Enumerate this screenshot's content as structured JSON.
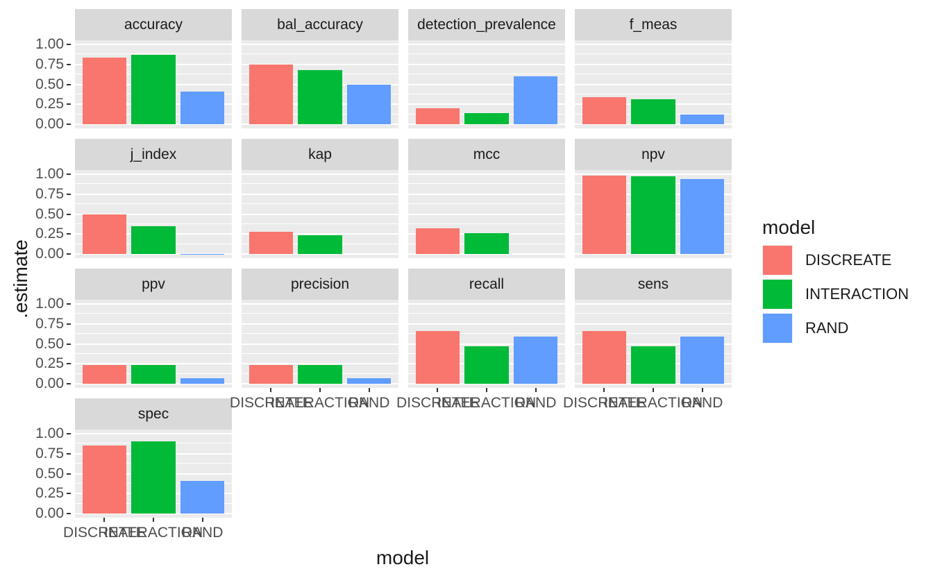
{
  "chart_data": {
    "type": "bar",
    "faceted": true,
    "facet_variable": "metric",
    "x_variable": "model",
    "title": "",
    "xlabel": "model",
    "ylabel": ".estimate",
    "categories": [
      "DISCREATE",
      "INTERACTION",
      "RAND"
    ],
    "category_colors": {
      "DISCREATE": "#F8766D",
      "INTERACTION": "#00BA38",
      "RAND": "#619CFF"
    },
    "y_axis": {
      "ticks": [
        1.0,
        0.75,
        0.5,
        0.25,
        0.0
      ],
      "tick_labels": [
        "1.00",
        "0.75",
        "0.50",
        "0.25",
        "0.00"
      ],
      "range_units": [
        -0.05,
        1.05
      ]
    },
    "grid": {
      "major": [
        0.0,
        0.25,
        0.5,
        0.75,
        1.0
      ],
      "minor": [
        0.125,
        0.375,
        0.625,
        0.875
      ]
    },
    "legend": {
      "title": "model",
      "position": "right",
      "entries": [
        {
          "label": "DISCREATE",
          "color": "#F8766D"
        },
        {
          "label": "INTERACTION",
          "color": "#00BA38"
        },
        {
          "label": "RAND",
          "color": "#619CFF"
        }
      ]
    },
    "facets": [
      {
        "label": "accuracy",
        "values": [
          0.83,
          0.87,
          0.41
        ]
      },
      {
        "label": "bal_accuracy",
        "values": [
          0.75,
          0.68,
          0.5
        ]
      },
      {
        "label": "detection_prevalence",
        "values": [
          0.2,
          0.14,
          0.6
        ]
      },
      {
        "label": "f_meas",
        "values": [
          0.34,
          0.31,
          0.12
        ]
      },
      {
        "label": "j_index",
        "values": [
          0.5,
          0.35,
          0.004
        ]
      },
      {
        "label": "kap",
        "values": [
          0.28,
          0.24,
          0
        ]
      },
      {
        "label": "mcc",
        "values": [
          0.32,
          0.26,
          0
        ]
      },
      {
        "label": "npv",
        "values": [
          0.98,
          0.97,
          0.94
        ]
      },
      {
        "label": "ppv",
        "values": [
          0.24,
          0.24,
          0.07
        ]
      },
      {
        "label": "precision",
        "values": [
          0.24,
          0.24,
          0.07
        ]
      },
      {
        "label": "recall",
        "values": [
          0.66,
          0.47,
          0.59
        ]
      },
      {
        "label": "sens",
        "values": [
          0.66,
          0.47,
          0.59
        ]
      },
      {
        "label": "spec",
        "values": [
          0.85,
          0.9,
          0.41
        ]
      }
    ],
    "panel_bg": "#EBEBEB",
    "strip_bg": "#D9D9D9",
    "grid_color": "#FFFFFF",
    "axis_text_color": "#4D4D4D"
  }
}
